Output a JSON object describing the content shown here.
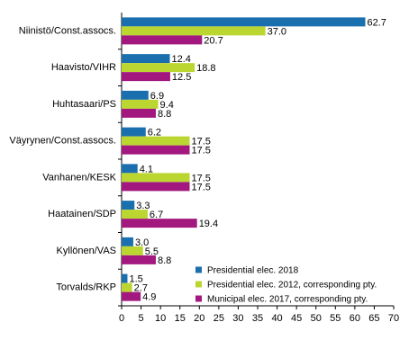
{
  "chart_data": {
    "type": "hbar",
    "categories": [
      "Niinistö/Const.assocs.",
      "Haavisto/VIHR",
      "Huhtasaari/PS",
      "Väyrynen/Const.assocs.",
      "Vanhanen/KESK",
      "Haatainen/SDP",
      "Kyllönen/VAS",
      "Torvalds/RKP"
    ],
    "series": [
      {
        "name": "Presidential elec. 2018",
        "color": "#1a6fae",
        "values": [
          62.7,
          12.4,
          6.9,
          6.2,
          4.1,
          3.3,
          3.0,
          1.5
        ],
        "value_labels": [
          "62.7",
          "12.4",
          "6.9",
          "6.2",
          "4.1",
          "3.3",
          "3.0",
          "1.5"
        ]
      },
      {
        "name": "Presidential elec. 2012, corresponding pty.",
        "color": "#bcd631",
        "values": [
          37.0,
          18.8,
          9.4,
          17.5,
          17.5,
          6.7,
          5.5,
          2.7
        ],
        "value_labels": [
          "37.0",
          "18.8",
          "9.4",
          "17.5",
          "17.5",
          "6.7",
          "5.5",
          "2.7"
        ]
      },
      {
        "name": "Municipal elec. 2017, corresponding pty.",
        "color": "#a3187e",
        "values": [
          20.7,
          12.5,
          8.8,
          17.5,
          17.5,
          19.4,
          8.8,
          4.9
        ],
        "value_labels": [
          "20.7",
          "12.5",
          "8.8",
          "17.5",
          "17.5",
          "19.4",
          "8.8",
          "4.9"
        ]
      }
    ],
    "xlim": [
      0,
      70
    ],
    "xticks": [
      0,
      5,
      10,
      15,
      20,
      25,
      30,
      35,
      40,
      45,
      50,
      55,
      60,
      65,
      70
    ],
    "legend": "lower right",
    "grid": false
  }
}
